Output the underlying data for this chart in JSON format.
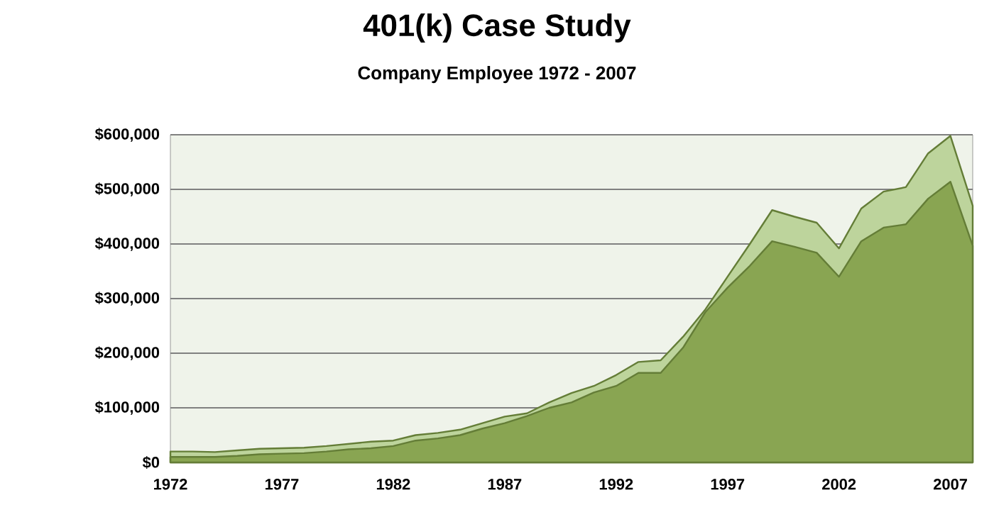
{
  "chart_data": {
    "type": "area",
    "title": "401(k) Case Study",
    "subtitle": "Company Employee 1972 - 2007",
    "x": [
      1972,
      1973,
      1974,
      1975,
      1976,
      1977,
      1978,
      1979,
      1980,
      1981,
      1982,
      1983,
      1984,
      1985,
      1986,
      1987,
      1988,
      1989,
      1990,
      1991,
      1992,
      1993,
      1994,
      1995,
      1996,
      1997,
      1998,
      1999,
      2000,
      2001,
      2002,
      2003,
      2004,
      2005,
      2006,
      2007,
      2008
    ],
    "series": [
      {
        "color": "#bdd49c",
        "values": [
          20000,
          20000,
          19000,
          22000,
          25000,
          26000,
          27000,
          30000,
          34000,
          38000,
          40000,
          50000,
          54000,
          60000,
          72000,
          84000,
          90000,
          110000,
          127000,
          140000,
          160000,
          184000,
          187000,
          230000,
          280000,
          340000,
          400000,
          462000,
          450000,
          439000,
          392000,
          465000,
          496000,
          504000,
          566000,
          598000,
          470000
        ]
      },
      {
        "color": "#89a552",
        "values": [
          10000,
          10000,
          10000,
          12000,
          15000,
          16000,
          17000,
          20000,
          24000,
          26000,
          30000,
          40000,
          44000,
          50000,
          62000,
          72000,
          85000,
          100000,
          110000,
          128000,
          140000,
          164000,
          164000,
          210000,
          275000,
          320000,
          360000,
          405000,
          395000,
          384000,
          340000,
          405000,
          430000,
          436000,
          483000,
          514000,
          397000
        ]
      }
    ],
    "xlim": [
      1972,
      2008
    ],
    "xticks": [
      1972,
      1977,
      1982,
      1987,
      1992,
      1997,
      2002,
      2007
    ],
    "ylim": [
      0,
      600000
    ],
    "yticks": [
      {
        "value": 0,
        "label": "$0"
      },
      {
        "value": 100000,
        "label": "$100,000"
      },
      {
        "value": 200000,
        "label": "$200,000"
      },
      {
        "value": 300000,
        "label": "$300,000"
      },
      {
        "value": 400000,
        "label": "$400,000"
      },
      {
        "value": 500000,
        "label": "$500,000"
      },
      {
        "value": 600000,
        "label": "$600,000"
      }
    ],
    "grid": "y"
  }
}
